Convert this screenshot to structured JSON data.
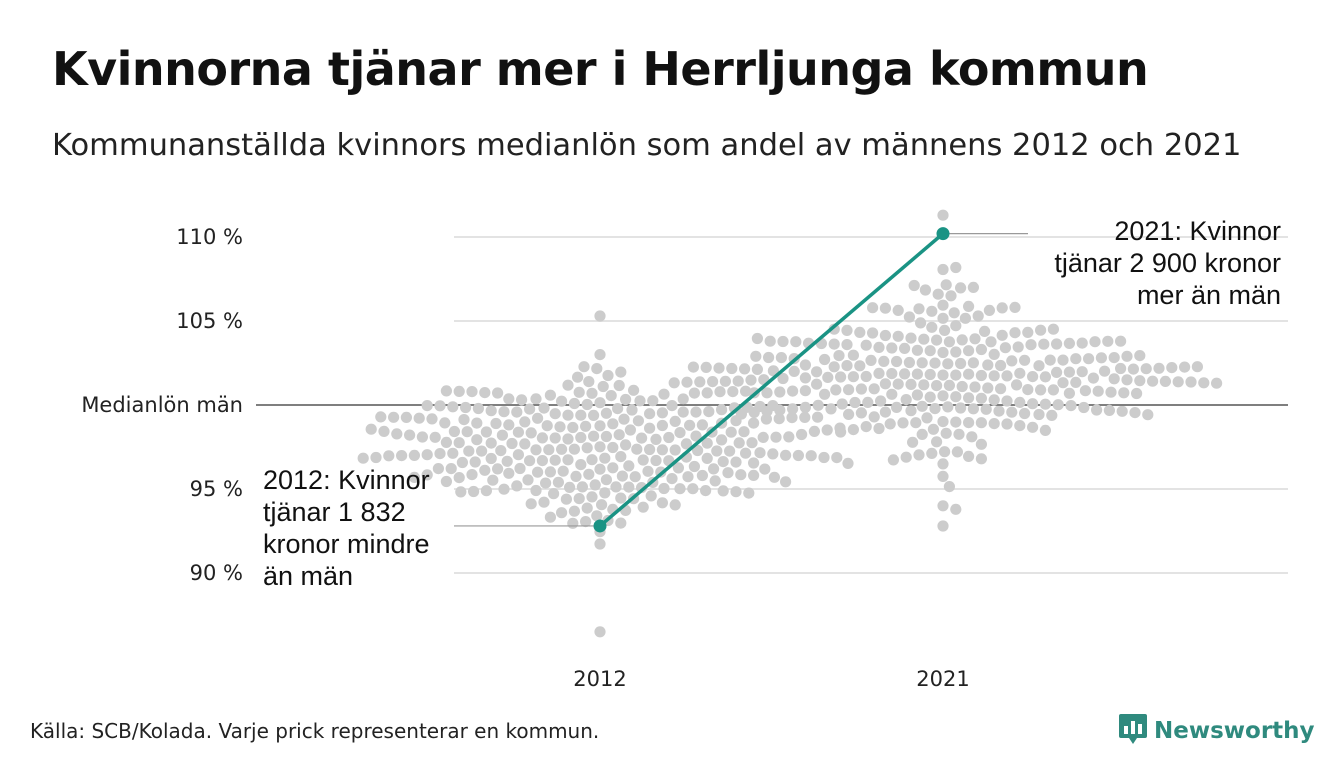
{
  "title": "Kvinnorna tjänar mer i Herrljunga kommun",
  "subtitle": "Kommunanställda kvinnors medianlön som andel av männens 2012 och 2021",
  "source": "Källa: SCB/Kolada. Varje prick representerar en kommun.",
  "brand": {
    "name": "Newsworthy",
    "color": "#2f8a7e",
    "icon": "bar-chart-speech-bubble-icon"
  },
  "colors": {
    "highlight": "#1a9384",
    "dots": "#cccccc",
    "grid": "#e3e3e3",
    "baseline": "#333333"
  },
  "chart_data": {
    "type": "scatter",
    "subtype": "beeswarm",
    "categories": [
      "2012",
      "2021"
    ],
    "ylim": [
      85.5,
      112.5
    ],
    "y_ticks": [
      {
        "value": 90,
        "label": "90 %"
      },
      {
        "value": 95,
        "label": "95 %"
      },
      {
        "value": 100,
        "label": "Medianlön män"
      },
      {
        "value": 105,
        "label": "105 %"
      },
      {
        "value": 110,
        "label": "110 %"
      }
    ],
    "grid": true,
    "swarm": [
      {
        "category": "2012",
        "center": 97.5,
        "sd": 2.2,
        "min": 86.5,
        "max": 105.3,
        "n": 290
      },
      {
        "category": "2021",
        "center": 101.8,
        "sd": 2.3,
        "min": 92.8,
        "max": 111.3,
        "n": 290
      }
    ],
    "highlight": {
      "name": "Herrljunga",
      "points": [
        {
          "x": "2012",
          "y": 92.8
        },
        {
          "x": "2021",
          "y": 110.2
        }
      ]
    },
    "annotations": [
      {
        "x": "2012",
        "y": 92.8,
        "lines": [
          "2012: Kvinnor",
          "tjänar 1 832",
          "kronor mindre",
          "än män"
        ]
      },
      {
        "x": "2021",
        "y": 110.2,
        "lines": [
          "2021: Kvinnor",
          "tjänar 2 900 kronor",
          "mer än män"
        ]
      }
    ]
  }
}
